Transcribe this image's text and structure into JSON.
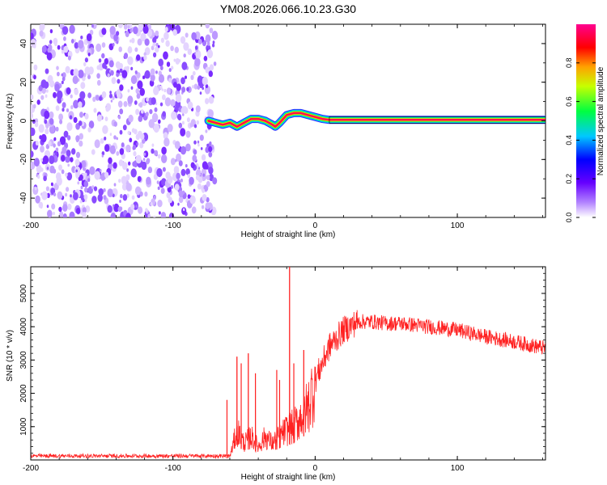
{
  "title": "YM08.2026.066.10.23.G30",
  "chart_data": [
    {
      "type": "heatmap",
      "title": "YM08.2026.066.10.23.G30",
      "xlabel": "Height of straight line (km)",
      "ylabel": "Frequency (Hz)",
      "xlim": [
        -200,
        162
      ],
      "ylim": [
        -50,
        50
      ],
      "xticks": [
        -200,
        -100,
        0,
        100
      ],
      "yticks": [
        -40,
        -20,
        0,
        20,
        40
      ],
      "noise_region_x": [
        -200,
        -70
      ],
      "signal_track": {
        "x": [
          -75,
          -70,
          -65,
          -60,
          -55,
          -50,
          -45,
          -40,
          -35,
          -30,
          -28,
          -25,
          -20,
          -15,
          -10,
          -5,
          0,
          5,
          10,
          50,
          100,
          162
        ],
        "freq": [
          0,
          -1,
          -2,
          -1,
          -3,
          -1,
          1,
          1,
          0,
          -2,
          -3,
          -1,
          3,
          4,
          4,
          3,
          2,
          1,
          0.5,
          0.5,
          0.5,
          0.5
        ]
      },
      "colorbar": {
        "label": "Normalized spectral amplitude",
        "range": [
          0,
          1
        ],
        "ticks": [
          0.0,
          0.2,
          0.4,
          0.6,
          0.8
        ],
        "tick_labels": [
          "0.0",
          "0.2",
          "0.4",
          "0.6",
          "0.8"
        ],
        "colors": [
          "#ffffff",
          "#6600ff",
          "#0000ff",
          "#00ffff",
          "#00ff00",
          "#ffff00",
          "#ff8000",
          "#ff0000",
          "#ff0066"
        ]
      }
    },
    {
      "type": "line",
      "xlabel": "Height of straight line (km)",
      "ylabel": "SNR (10 * v/v)",
      "xlim": [
        -200,
        162
      ],
      "ylim": [
        0,
        5800
      ],
      "xticks": [
        -200,
        -100,
        0,
        100
      ],
      "yticks": [
        1000,
        2000,
        3000,
        4000,
        5000
      ],
      "color": "#ff2222",
      "series_envelope": {
        "x": [
          -200,
          -60,
          -58,
          -55,
          -50,
          -45,
          -40,
          -35,
          -30,
          -25,
          -20,
          -15,
          -10,
          -5,
          0,
          10,
          20,
          30,
          40,
          50,
          60,
          80,
          100,
          120,
          140,
          162
        ],
        "y": [
          100,
          100,
          400,
          900,
          500,
          700,
          400,
          700,
          500,
          700,
          900,
          1000,
          1300,
          1600,
          2400,
          3400,
          3900,
          4150,
          4150,
          4100,
          4100,
          4000,
          3900,
          3700,
          3550,
          3350
        ]
      },
      "spikes": [
        {
          "x": -62,
          "y": 1800
        },
        {
          "x": -55,
          "y": 3100
        },
        {
          "x": -52,
          "y": 2900
        },
        {
          "x": -47,
          "y": 3200
        },
        {
          "x": -42,
          "y": 2600
        },
        {
          "x": -27,
          "y": 2700
        },
        {
          "x": -25,
          "y": 2400
        },
        {
          "x": -18,
          "y": 5800
        },
        {
          "x": -15,
          "y": 2900
        },
        {
          "x": -8,
          "y": 3300
        }
      ]
    }
  ]
}
